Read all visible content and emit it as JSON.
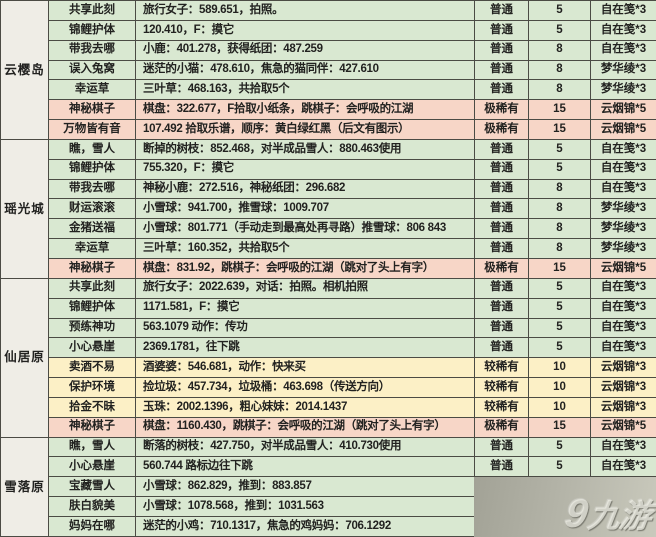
{
  "chart_data": {
    "type": "table",
    "note_layout": "rows grouped by region; columns: region, task, location, rarity, points, reward",
    "tier_colors": {
      "common": "#d9e8d1",
      "rare": "#fcf0c6",
      "epic": "#f7d6c7"
    },
    "region_col_color": "#efede6",
    "border_color": "#4b4b44",
    "sections": [
      {
        "region": "云樱岛",
        "rows": [
          {
            "task": "共享此刻",
            "desc": "旅行女子：589.651，拍照。",
            "rarity": "普通",
            "points": "5",
            "reward": "自在笺*3",
            "tier": "common"
          },
          {
            "task": "锦鲤护体",
            "desc": "120.410，F：摸它",
            "rarity": "普通",
            "points": "5",
            "reward": "自在笺*3",
            "tier": "common"
          },
          {
            "task": "带我去哪",
            "desc": "小鹿：401.278，获得纸团：487.259",
            "rarity": "普通",
            "points": "8",
            "reward": "自在笺*3",
            "tier": "common"
          },
          {
            "task": "误入兔窝",
            "desc": "迷茫的小猫：478.610，焦急的猫同伴：427.610",
            "rarity": "普通",
            "points": "8",
            "reward": "梦华绫*3",
            "tier": "common"
          },
          {
            "task": "幸运草",
            "desc": "三叶草：468.163，共拾取5个",
            "rarity": "普通",
            "points": "8",
            "reward": "梦华绫*3",
            "tier": "common"
          },
          {
            "task": "神秘棋子",
            "desc": "棋盘：322.677，F拾取小纸条，跳棋子：会呼吸的江湖",
            "rarity": "极稀有",
            "points": "15",
            "reward": "云烟锦*5",
            "tier": "epic"
          },
          {
            "task": "万物皆有音",
            "desc": "107.492 拾取乐谱，顺序：黄白绿红黑（后文有图示）",
            "rarity": "极稀有",
            "points": "15",
            "reward": "云烟锦*5",
            "tier": "epic"
          }
        ]
      },
      {
        "region": "瑶光城",
        "rows": [
          {
            "task": "瞧，雪人",
            "desc": "断掉的树枝：852.468，对半成品雪人：880.463使用",
            "rarity": "普通",
            "points": "5",
            "reward": "自在笺*3",
            "tier": "common"
          },
          {
            "task": "锦鲤护体",
            "desc": "755.320，F：摸它",
            "rarity": "普通",
            "points": "5",
            "reward": "自在笺*3",
            "tier": "common"
          },
          {
            "task": "带我去哪",
            "desc": "神秘小鹿：272.516，神秘纸团：296.682",
            "rarity": "普通",
            "points": "8",
            "reward": "自在笺*3",
            "tier": "common"
          },
          {
            "task": "财运滚滚",
            "desc": "小雪球：941.700，推雪球：1009.707",
            "rarity": "普通",
            "points": "8",
            "reward": "梦华绫*3",
            "tier": "common"
          },
          {
            "task": "金猪送福",
            "desc": "小雪球：801.771（手动走到最高处再寻路）推雪球：806 843",
            "rarity": "普通",
            "points": "8",
            "reward": "梦华绫*3",
            "tier": "common"
          },
          {
            "task": "幸运草",
            "desc": "三叶草：160.352，共拾取5个",
            "rarity": "普通",
            "points": "8",
            "reward": "梦华绫*3",
            "tier": "common"
          },
          {
            "task": "神秘棋子",
            "desc": "棋盘：831.92，跳棋子：会呼吸的江湖（跳对了头上有字）",
            "rarity": "极稀有",
            "points": "15",
            "reward": "云烟锦*5",
            "tier": "epic"
          }
        ]
      },
      {
        "region": "仙居原",
        "rows": [
          {
            "task": "共享此刻",
            "desc": "旅行女子：2022.639，对话：拍照。相机拍照",
            "rarity": "普通",
            "points": "5",
            "reward": "自在笺*3",
            "tier": "common"
          },
          {
            "task": "锦鲤护体",
            "desc": "1171.581，F：摸它",
            "rarity": "普通",
            "points": "5",
            "reward": "自在笺*3",
            "tier": "common"
          },
          {
            "task": "预练神功",
            "desc": "563.1079 动作：传功",
            "rarity": "普通",
            "points": "5",
            "reward": "自在笺*3",
            "tier": "common"
          },
          {
            "task": "小心悬崖",
            "desc": "2369.1781，往下跳",
            "rarity": "普通",
            "points": "5",
            "reward": "自在笺*3",
            "tier": "common"
          },
          {
            "task": "卖酒不易",
            "desc": "酒婆婆：546.681，动作：快来买",
            "rarity": "较稀有",
            "points": "10",
            "reward": "云烟锦*3",
            "tier": "rare"
          },
          {
            "task": "保护环境",
            "desc": "捡垃圾：457.734，垃圾桶：463.698（传送方向）",
            "rarity": "较稀有",
            "points": "10",
            "reward": "云烟锦*3",
            "tier": "rare"
          },
          {
            "task": "拾金不昧",
            "desc": "玉珠：2002.1396，粗心妹妹：2014.1437",
            "rarity": "较稀有",
            "points": "10",
            "reward": "云烟锦*3",
            "tier": "rare"
          },
          {
            "task": "神秘棋子",
            "desc": "棋盘：1160.430，跳棋子：会呼吸的江湖（跳对了头上有字）",
            "rarity": "极稀有",
            "points": "15",
            "reward": "云烟锦*5",
            "tier": "epic"
          }
        ]
      },
      {
        "region": "雪落原",
        "rows": [
          {
            "task": "瞧，雪人",
            "desc": "断落的树枝：427.750，对半成品雪人：410.730使用",
            "rarity": "普通",
            "points": "5",
            "reward": "自在笺*3",
            "tier": "common"
          },
          {
            "task": "小心悬崖",
            "desc": "560.744 路标边往下跳",
            "rarity": "普通",
            "points": "5",
            "reward": "自在笺*3",
            "tier": "common"
          },
          {
            "task": "宝藏雪人",
            "desc": "小雪球：862.829，推到：883.857",
            "rarity": "",
            "points": "",
            "reward": "",
            "tier": "common"
          },
          {
            "task": "肤白貌美",
            "desc": "小雪球：1078.568，推到：1031.563",
            "rarity": "",
            "points": "",
            "reward": "",
            "tier": "common"
          },
          {
            "task": "妈妈在哪",
            "desc": "迷茫的小鸡：710.1317，焦急的鸡妈妈：706.1292",
            "rarity": "",
            "points": "",
            "reward": "",
            "tier": "common"
          }
        ]
      }
    ]
  },
  "watermark": {
    "glyph": "9",
    "text": "九游"
  }
}
